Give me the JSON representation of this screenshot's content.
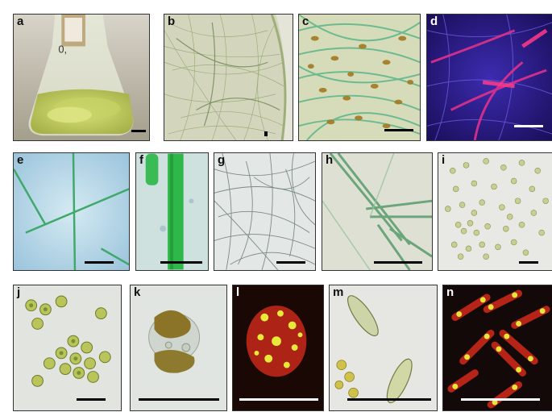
{
  "figure": {
    "panels": [
      {
        "id": "a",
        "label": "a",
        "content": "flask culture"
      },
      {
        "id": "b",
        "label": "b",
        "content": "filament mat"
      },
      {
        "id": "c",
        "label": "c",
        "content": "green filaments with brown cells"
      },
      {
        "id": "d",
        "label": "d",
        "content": "fluorescence filaments"
      },
      {
        "id": "e",
        "label": "e",
        "content": "green filaments"
      },
      {
        "id": "f",
        "label": "f",
        "content": "single filament close-up"
      },
      {
        "id": "g",
        "label": "g",
        "content": "thin filaments"
      },
      {
        "id": "h",
        "label": "h",
        "content": "filament bundle"
      },
      {
        "id": "i",
        "label": "i",
        "content": "scattered round cells"
      },
      {
        "id": "j",
        "label": "j",
        "content": "round cells close-up"
      },
      {
        "id": "k",
        "label": "k",
        "content": "brown cell pair"
      },
      {
        "id": "l",
        "label": "l",
        "content": "fluorescence cell"
      },
      {
        "id": "m",
        "label": "m",
        "content": "diatom cells"
      },
      {
        "id": "n",
        "label": "n",
        "content": "fluorescence diatoms"
      }
    ],
    "flask_text": "0,"
  },
  "colors": {
    "label_dark": "#111111",
    "label_light": "#ffffff",
    "scalebar_black": "#000000",
    "scalebar_white": "#ffffff",
    "filament_green": "#3fa86a",
    "fluor_red": "#ff2a2a",
    "fluor_magenta": "#e0308c"
  }
}
